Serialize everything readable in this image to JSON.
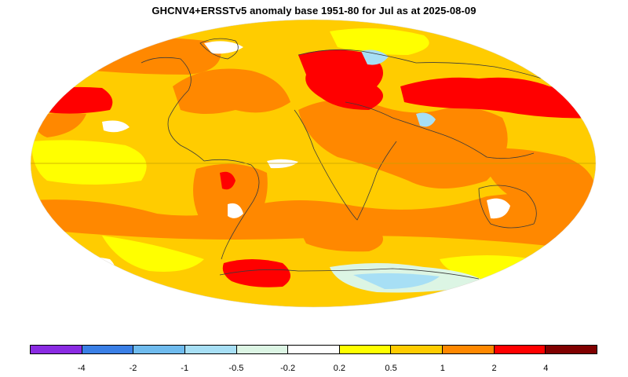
{
  "title": "GHCNV4+ERSSTv5 anomaly base 1951-80 for Jul as at 2025-08-09",
  "map": {
    "projection": "mollweide",
    "equator_color": "#c8a000",
    "coastline_color": "#3a3a3a"
  },
  "legend": {
    "colors": [
      "#8a2be2",
      "#3a7fe6",
      "#6fbbee",
      "#a7dff5",
      "#dcf5e4",
      "#ffffff",
      "#ffff00",
      "#ffcc00",
      "#ff8800",
      "#ff0000",
      "#800000"
    ],
    "tick_labels": [
      "-4",
      "-2",
      "-1",
      "-0.5",
      "-0.2",
      "0.2",
      "0.5",
      "1",
      "2",
      "4"
    ]
  }
}
